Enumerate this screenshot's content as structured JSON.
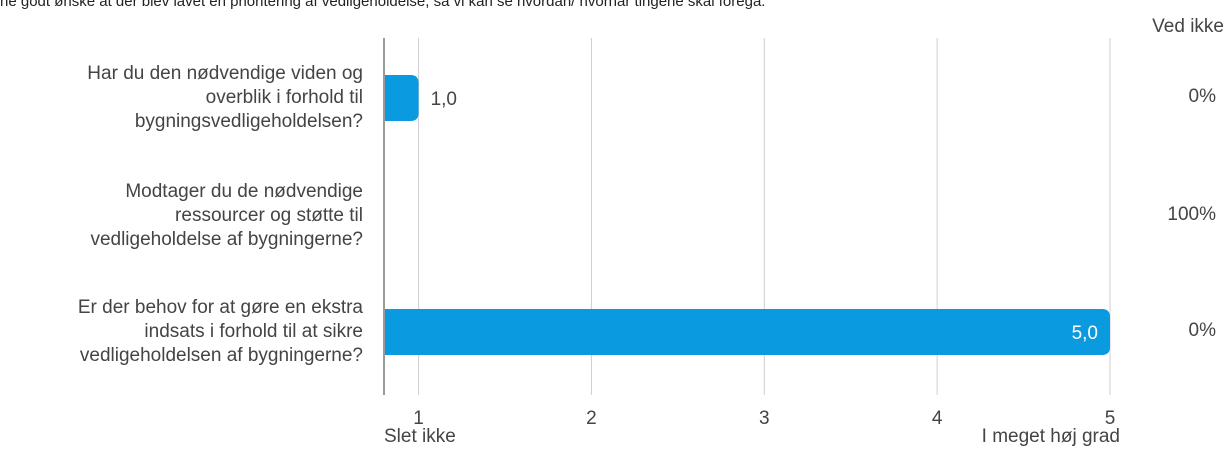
{
  "header": {
    "note": "ne godt ønske at der blev lavet en prioritering af vedligeholdelse, så vi kan se hvordan/ hvornår tingene skal foregå."
  },
  "chart_data": {
    "type": "bar",
    "orientation": "horizontal",
    "categories": [
      [
        "Har du den nødvendige viden og",
        "overblik i forhold til",
        "bygningsvedligeholdelsen?"
      ],
      [
        "Modtager du de nødvendige",
        "ressourcer og støtte til",
        "vedligeholdelse af bygningerne?"
      ],
      [
        "Er der behov for at gøre en ekstra",
        "indsats i forhold til at sikre",
        "vedligeholdelsen af bygningerne?"
      ]
    ],
    "values": [
      1.0,
      null,
      5.0
    ],
    "value_labels": [
      "1,0",
      "",
      "5,0"
    ],
    "xlim": [
      0.8,
      5.0
    ],
    "x_ticks": [
      1,
      2,
      3,
      4,
      5
    ],
    "x_tick_labels": [
      "1",
      "2",
      "3",
      "4",
      "5"
    ],
    "scale_labels": {
      "low": "Slet ikke",
      "high": "I meget høj grad"
    },
    "dont_know": {
      "title": "Ved ikke",
      "values": [
        "0%",
        "100%",
        "0%"
      ]
    },
    "grid": true,
    "bar_color": "#0a9ae0"
  }
}
